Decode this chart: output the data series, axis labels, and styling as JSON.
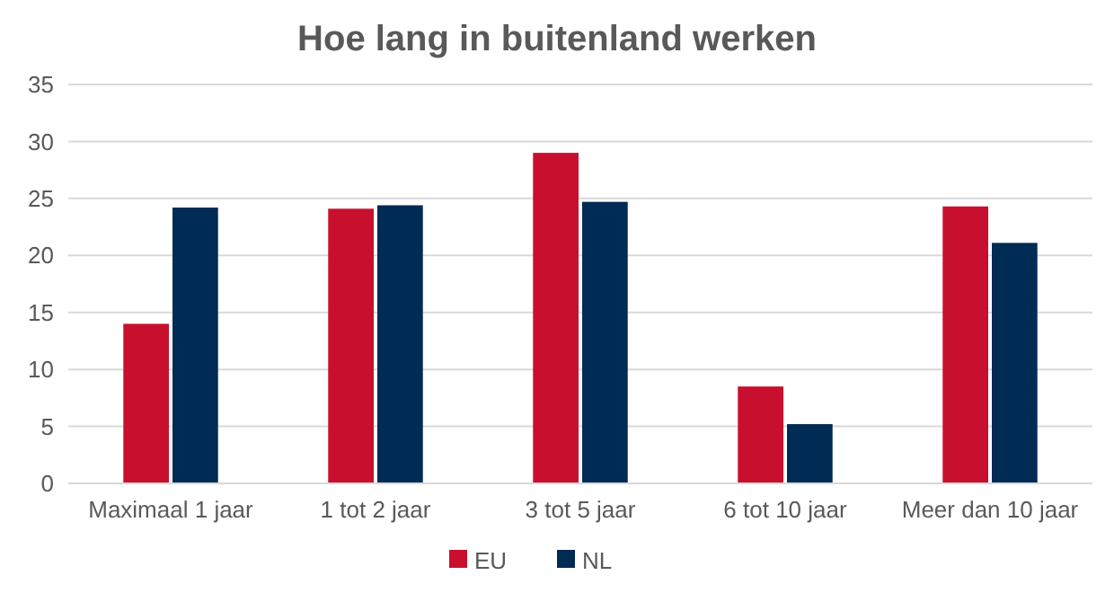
{
  "chart_data": {
    "type": "bar",
    "title": "Hoe lang in buitenland werken",
    "categories": [
      "Maximaal 1 jaar",
      "1 tot 2 jaar",
      "3 tot 5 jaar",
      "6 tot 10 jaar",
      "Meer dan 10 jaar"
    ],
    "series": [
      {
        "name": "EU",
        "color": "#c8102e",
        "values": [
          14,
          24.1,
          29,
          8.5,
          24.3
        ]
      },
      {
        "name": "NL",
        "color": "#002b54",
        "values": [
          24.2,
          24.4,
          24.7,
          5.2,
          21.1
        ]
      }
    ],
    "ylim": [
      0,
      35
    ],
    "yticks": [
      0,
      5,
      10,
      15,
      20,
      25,
      30,
      35
    ],
    "grid": "y",
    "legend": "bottom"
  }
}
